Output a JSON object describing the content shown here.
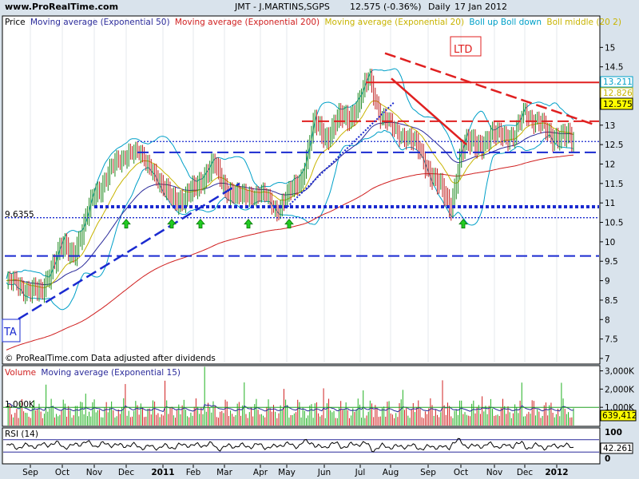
{
  "header": {
    "site": "www.ProRealTime.com",
    "symbol": "JMT - J.MARTINS,SGPS",
    "quote": "12.575 (-0.36%)",
    "period": "Daily",
    "date": "17 Jan 2012"
  },
  "price_panel": {
    "legend": [
      {
        "text": "Price",
        "color": "#000000"
      },
      {
        "text": "Moving average (Exponential 50)",
        "color": "#2a2a9a"
      },
      {
        "text": "Moving average (Exponential 200)",
        "color": "#d02020"
      },
      {
        "text": "Moving average (Exponential 20)",
        "color": "#c8b400"
      },
      {
        "text": "Boll up Boll down",
        "color": "#00a0c8"
      },
      {
        "text": "Boll middle (20 2)",
        "color": "#c8b400"
      }
    ],
    "footer": "© ProRealTime.com  Data adjusted after dividends",
    "ta_badge": "TA",
    "ltd_badge": "LTD",
    "level_label": "9.6355",
    "value_tags": [
      {
        "text": "13.211",
        "bg": "#ffffff",
        "fg": "#00a0c8"
      },
      {
        "text": "12.826",
        "bg": "#ffffff",
        "fg": "#c8b400"
      },
      {
        "text": "12.575",
        "bg": "#ffff00",
        "fg": "#000000"
      }
    ]
  },
  "volume_panel": {
    "legend": [
      {
        "text": "Volume",
        "color": "#d02020"
      },
      {
        "text": "Moving average (Exponential 15)",
        "color": "#2a2a9a"
      }
    ],
    "ref_label": "1,000K",
    "value_tag": "639,412"
  },
  "rsi_panel": {
    "legend": "RSI (14)",
    "value_tag": "42.261"
  },
  "x_axis": {
    "labels": [
      "Sep",
      "Oct",
      "Nov",
      "Dec",
      "2011",
      "Feb",
      "Mar",
      "Apr",
      "May",
      "Jun",
      "Jul",
      "Aug",
      "Sep",
      "Oct",
      "Nov",
      "Dec",
      "2012"
    ],
    "bold": [
      "2011",
      "2012"
    ]
  },
  "colors": {
    "background": "#d9e3ec",
    "panel": "#ffffff",
    "ema50": "#2a2a9a",
    "ema200": "#d02020",
    "ema20": "#c8b400",
    "bollinger": "#00a0c8",
    "trendline_blue": "#1a2ad0",
    "trendline_red": "#e02020",
    "volume_up": "#20b020",
    "volume_down": "#d02020",
    "signal_arrow": "#22cc22"
  },
  "chart_data": [
    {
      "type": "line",
      "title": "JMT - J.MARTINS,SGPS Daily",
      "y_axis_ticks": [
        7,
        7.5,
        8,
        8.5,
        9,
        9.5,
        10,
        10.5,
        11,
        11.5,
        12,
        12.5,
        13,
        13.5,
        14,
        14.5,
        15
      ],
      "ylim": [
        7,
        15.5
      ],
      "x_ticks": [
        "Sep",
        "Oct",
        "Nov",
        "Dec",
        "2011",
        "Feb",
        "Mar",
        "Apr",
        "May",
        "Jun",
        "Jul",
        "Aug",
        "Sep",
        "Oct",
        "Nov",
        "Dec",
        "2012"
      ],
      "price_path": [
        [
          "Sep",
          9.0
        ],
        [
          "Sep",
          8.8
        ],
        [
          "Sep",
          8.6
        ],
        [
          "Oct",
          9.4
        ],
        [
          "Oct",
          9.8
        ],
        [
          "Oct",
          9.7
        ],
        [
          "Nov",
          10.3
        ],
        [
          "Nov",
          11.2
        ],
        [
          "Nov",
          11.6
        ],
        [
          "Dec",
          12.0
        ],
        [
          "Dec",
          12.4
        ],
        [
          "Dec",
          12.2
        ],
        [
          "2011",
          12.0
        ],
        [
          "2011",
          11.3
        ],
        [
          "2011",
          11.2
        ],
        [
          "Feb",
          11.0
        ],
        [
          "Feb",
          11.6
        ],
        [
          "Mar",
          11.9
        ],
        [
          "Mar",
          11.4
        ],
        [
          "Mar",
          11.1
        ],
        [
          "Apr",
          11.3
        ],
        [
          "Apr",
          11.2
        ],
        [
          "May",
          10.9
        ],
        [
          "May",
          11.2
        ],
        [
          "May",
          11.7
        ],
        [
          "Jun",
          13.0
        ],
        [
          "Jun",
          12.7
        ],
        [
          "Jun",
          13.1
        ],
        [
          "Jul",
          13.2
        ],
        [
          "Jul",
          13.6
        ],
        [
          "Jul",
          14.2
        ],
        [
          "Aug",
          13.3
        ],
        [
          "Aug",
          12.9
        ],
        [
          "Aug",
          12.8
        ],
        [
          "Sep",
          12.3
        ],
        [
          "Sep",
          11.5
        ],
        [
          "Oct",
          10.9
        ],
        [
          "Oct",
          12.3
        ],
        [
          "Oct",
          12.6
        ],
        [
          "Nov",
          12.5
        ],
        [
          "Nov",
          12.9
        ],
        [
          "Dec",
          12.6
        ],
        [
          "Dec",
          13.5
        ],
        [
          "Dec",
          13.1
        ],
        [
          "2012",
          12.8
        ],
        [
          "2012",
          12.575
        ]
      ],
      "series": [
        {
          "name": "Moving average (Exponential 50)"
        },
        {
          "name": "Moving average (Exponential 200)"
        },
        {
          "name": "Moving average (Exponential 20)"
        },
        {
          "name": "Boll up Boll down"
        },
        {
          "name": "Boll middle (20 2)"
        }
      ],
      "horizontal_levels": [
        {
          "y": 12.58,
          "style": "dotted",
          "color": "#1a2ad0"
        },
        {
          "y": 12.3,
          "style": "dashed",
          "color": "#1a2ad0"
        },
        {
          "y": 10.9,
          "style": "dotted-bold",
          "color": "#1a2ad0"
        },
        {
          "y": 10.62,
          "style": "dotted",
          "color": "#1a2ad0"
        },
        {
          "y": 9.6355,
          "style": "dashed",
          "color": "#1a2ad0"
        },
        {
          "y": 14.1,
          "style": "solid",
          "color": "#e02020"
        },
        {
          "y": 13.1,
          "style": "dashed",
          "color": "#e02020"
        }
      ],
      "last_values": {
        "bollinger_up": 13.211,
        "ema20": 12.826,
        "price": 12.575
      },
      "signal_arrows_at": [
        "Dec",
        "2011",
        "Feb",
        "Mar",
        "Apr",
        "May",
        "Oct"
      ]
    },
    {
      "type": "bar",
      "title": "Volume",
      "y_axis_ticks": [
        "1,000K",
        "2,000K",
        "3,000K"
      ],
      "ylim": [
        0,
        3200000
      ],
      "reference_level": 1000000,
      "last_value": 639412,
      "series": [
        {
          "name": "Volume"
        },
        {
          "name": "Moving average (Exponential 15)"
        }
      ]
    },
    {
      "type": "line",
      "title": "RSI (14)",
      "y_axis_ticks": [
        0,
        100
      ],
      "ylim": [
        0,
        100
      ],
      "bands": [
        30,
        70
      ],
      "last_value": 42.261,
      "series": [
        {
          "name": "RSI (14)"
        }
      ]
    }
  ]
}
